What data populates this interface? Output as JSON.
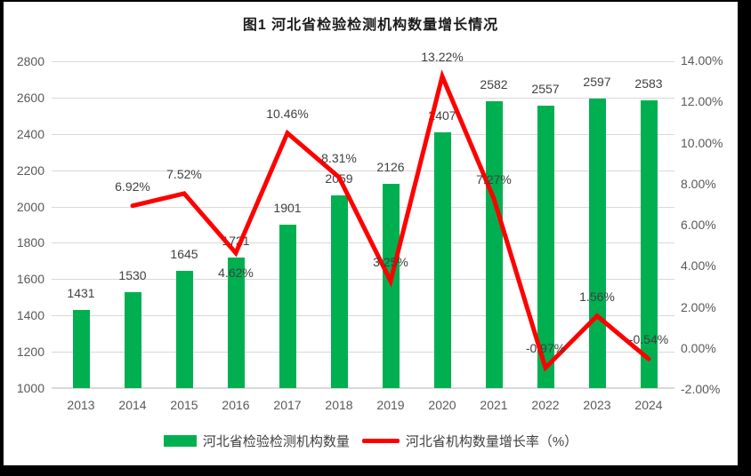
{
  "chart_data": {
    "type": "bar+line",
    "title": "图1 河北省检验检测机构数量增长情况",
    "categories": [
      "2013",
      "2014",
      "2015",
      "2016",
      "2017",
      "2018",
      "2019",
      "2020",
      "2021",
      "2022",
      "2023",
      "2024"
    ],
    "series": [
      {
        "name": "河北省检验检测机构数量",
        "type": "bar",
        "axis": "left",
        "color": "#00B050",
        "values": [
          1431,
          1530,
          1645,
          1721,
          1901,
          2059,
          2126,
          2407,
          2582,
          2557,
          2597,
          2583
        ],
        "labels": [
          "1431",
          "1530",
          "1645",
          "1721",
          "1901",
          "2059",
          "2126",
          "2407",
          "2582",
          "2557",
          "2597",
          "2583"
        ]
      },
      {
        "name": "河北省机构数量增长率（%）",
        "type": "line",
        "axis": "right",
        "color": "#FF0000",
        "values": [
          null,
          6.92,
          7.52,
          4.62,
          10.46,
          8.31,
          3.25,
          13.22,
          7.27,
          -0.97,
          1.56,
          -0.54
        ],
        "labels": [
          null,
          "6.92%",
          "7.52%",
          "4.62%",
          "10.46%",
          "8.31%",
          "3.25%",
          "13.22%",
          "7.27%",
          "-0.97%",
          "1.56%",
          "-0.54%"
        ],
        "label_below_indices": [
          3
        ]
      }
    ],
    "left_axis": {
      "min": 1000,
      "max": 2800,
      "step": 200,
      "ticks": [
        "2800",
        "2600",
        "2400",
        "2200",
        "2000",
        "1800",
        "1600",
        "1400",
        "1200",
        "1000"
      ]
    },
    "right_axis": {
      "min": -2,
      "max": 14,
      "step": 2,
      "ticks": [
        "14.00%",
        "12.00%",
        "10.00%",
        "8.00%",
        "6.00%",
        "4.00%",
        "2.00%",
        "0.00%",
        "-2.00%"
      ]
    },
    "grid": true,
    "legend_position": "bottom"
  }
}
